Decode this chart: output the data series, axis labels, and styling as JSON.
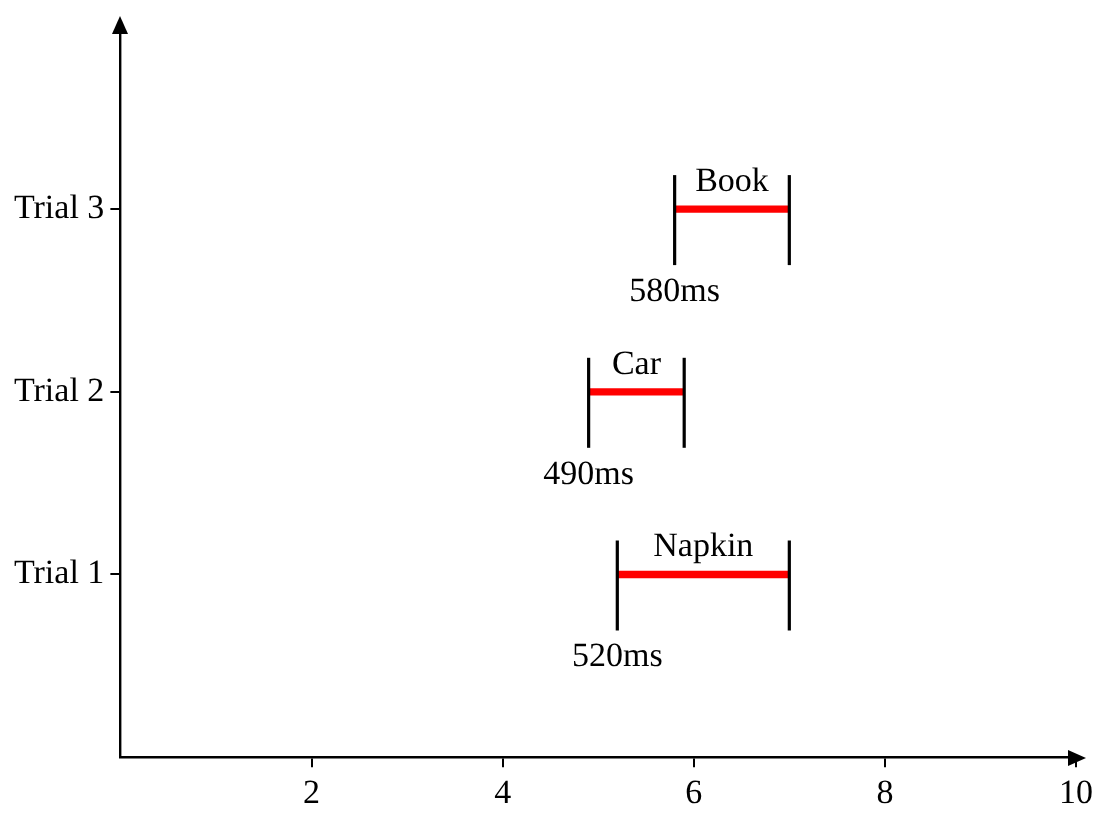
{
  "chart_data": {
    "type": "bar",
    "orientation": "horizontal",
    "categories": [
      "Trial 3",
      "Trial 2",
      "Trial 1"
    ],
    "series": [
      {
        "color": "#ff0000",
        "base": [
          5.8,
          4.9,
          5.2
        ],
        "values": [
          1.2,
          1.0,
          1.8
        ],
        "value_labels": [
          "Book",
          "Car",
          "Napkin"
        ]
      }
    ],
    "xlim": [
      0,
      10
    ],
    "xticks": [
      2,
      4,
      6,
      8,
      10
    ],
    "grid": false,
    "legend": false,
    "annotations": [
      "580ms",
      "490ms",
      "520ms"
    ]
  }
}
